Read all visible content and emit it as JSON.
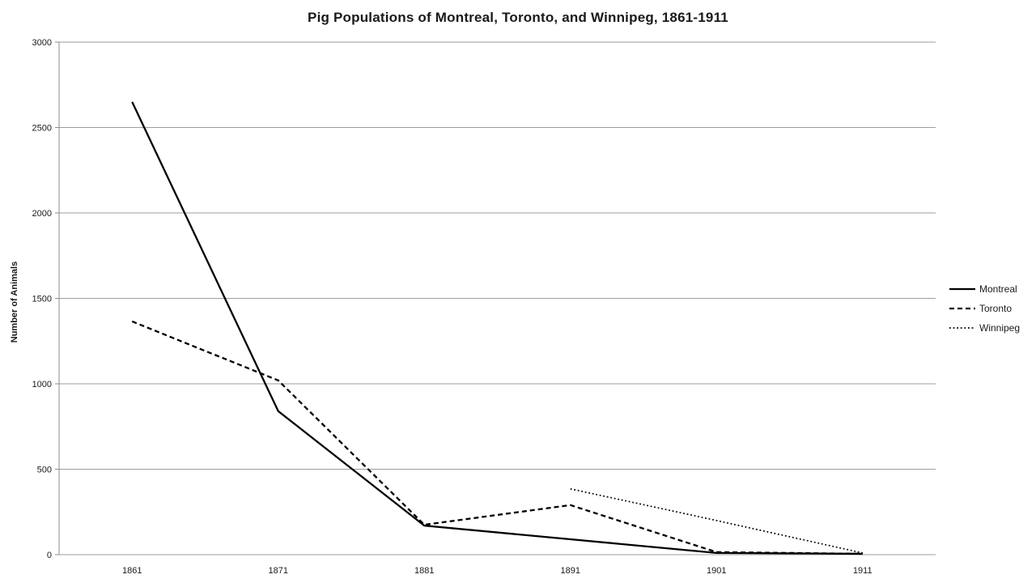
{
  "chart_data": {
    "type": "line",
    "title": "Pig Populations of Montreal, Toronto, and Winnipeg, 1861-1911",
    "xlabel": "",
    "ylabel": "Number of Animals",
    "ylim": [
      0,
      3000
    ],
    "yticks": [
      0,
      500,
      1000,
      1500,
      2000,
      2500,
      3000
    ],
    "categories": [
      "1861",
      "1871",
      "1881",
      "1891",
      "1901",
      "1911"
    ],
    "grid": "horizontal",
    "legend_position": "right",
    "series": [
      {
        "name": "Montreal",
        "line_style": "solid",
        "color": "#000000",
        "values": [
          2650,
          840,
          170,
          90,
          10,
          5
        ]
      },
      {
        "name": "Toronto",
        "line_style": "dashed",
        "color": "#000000",
        "values": [
          1365,
          1020,
          175,
          290,
          15,
          5
        ]
      },
      {
        "name": "Winnipeg",
        "line_style": "dotted",
        "color": "#000000",
        "values": [
          null,
          null,
          null,
          385,
          200,
          10
        ]
      }
    ],
    "colors": {
      "gridline": "#9d9d9d",
      "axis": "#8c8c8c",
      "tick_text": "#1a1a1a",
      "title_text": "#1a1a1a",
      "background": "#ffffff"
    }
  }
}
